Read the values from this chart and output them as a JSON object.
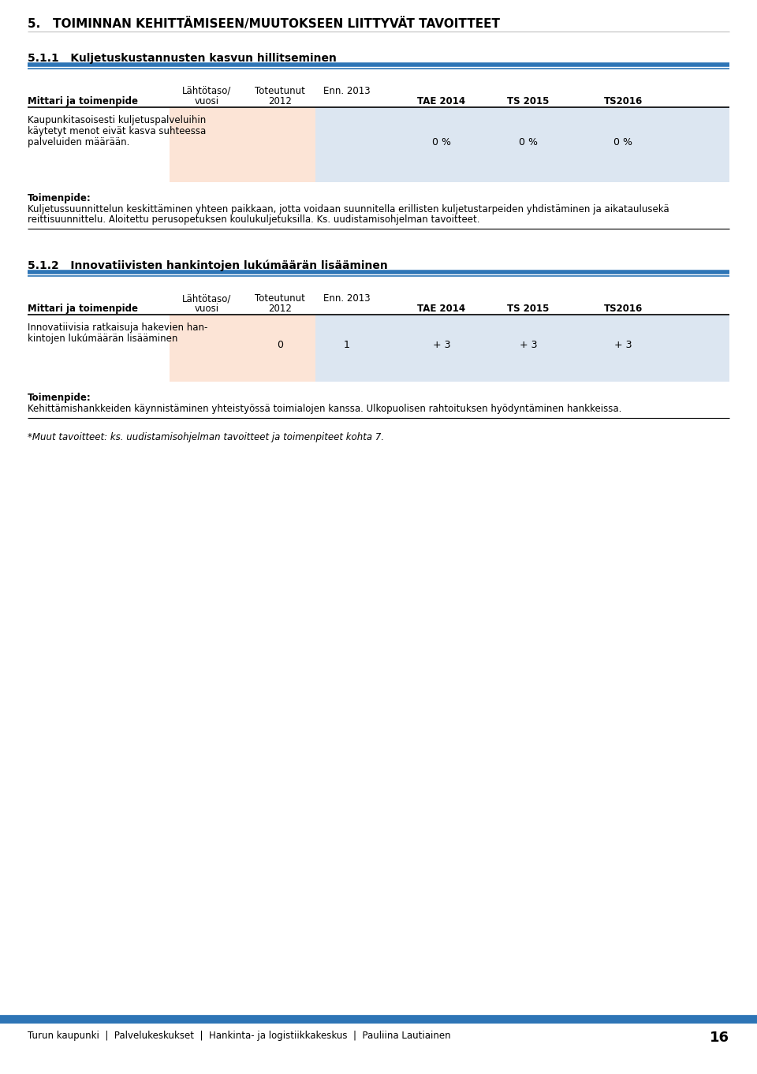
{
  "page_title": "5.   TOIMINNAN KEHITTÄMISEEN/MUUTOKSEEN LIITTYVÄT TAVOITTEET",
  "section1_num": "5.1.1",
  "section1_title": "Kuljetuskustannusten kasvun hillitseminen",
  "section2_num": "5.1.2",
  "section2_title": "Innovatiivisten hankintojen lukúmäärän lisääminen",
  "col_header_line1": [
    "Lähtötaso/",
    "Toteutunut",
    "Enn. 2013",
    "",
    "",
    ""
  ],
  "col_header_line2": [
    "vuosi",
    "2012",
    "",
    "TAE 2014",
    "TS 2015",
    "TS2016"
  ],
  "row_header": "Mittari ja toimenpide",
  "table1_row_label_lines": [
    "Kaupunkitasoisesti kuljetuspalveluihin",
    "käytetyt menot eivät kasva suhteessa",
    "palveluiden määrään."
  ],
  "table1_values": [
    "",
    "",
    "",
    "0 %",
    "0 %",
    "0 %"
  ],
  "table2_row_label_lines": [
    "Innovatiivisia ratkaisuja hakevien han-",
    "kintojen lukúmäärän lisääminen"
  ],
  "table2_values": [
    "",
    "0",
    "1",
    "+ 3",
    "+ 3",
    "+ 3"
  ],
  "toimenpide_label": "Toimenpide:",
  "toimenpide1_lines": [
    "Kuljetussuunnittelun keskittäminen yhteen paikkaan, jotta voidaan suunnitella erillisten kuljetustarpeiden yhdistäminen ja aikataulusekä",
    "reittisuunnittelu. Aloitettu perusopetuksen koulukuljetuksilla. Ks. uudistamisohjelman tavoitteet."
  ],
  "toimenpide2_lines": [
    "Kehittämishankkeiden käynnistäminen yhteistyössä toimialojen kanssa. Ulkopuolisen rahtoituksen hyödyntäminen hankkeissa."
  ],
  "footer_note": "*Muut tavoitteet: ks. uudistamisohjelman tavoitteet ja toimenpiteet kohta 7.",
  "footer_text": "Turun kaupunki  |  Palvelukeskukset  |  Hankinta- ja logistiikkakeskus  |  Pauliina Lautiainen",
  "footer_page": "16",
  "bg_color": "#ffffff",
  "table_bg_pink": "#fce4d6",
  "table_bg_blue": "#dce6f1",
  "header_line_color": "#2e75b6",
  "footer_line_color": "#2e75b6"
}
